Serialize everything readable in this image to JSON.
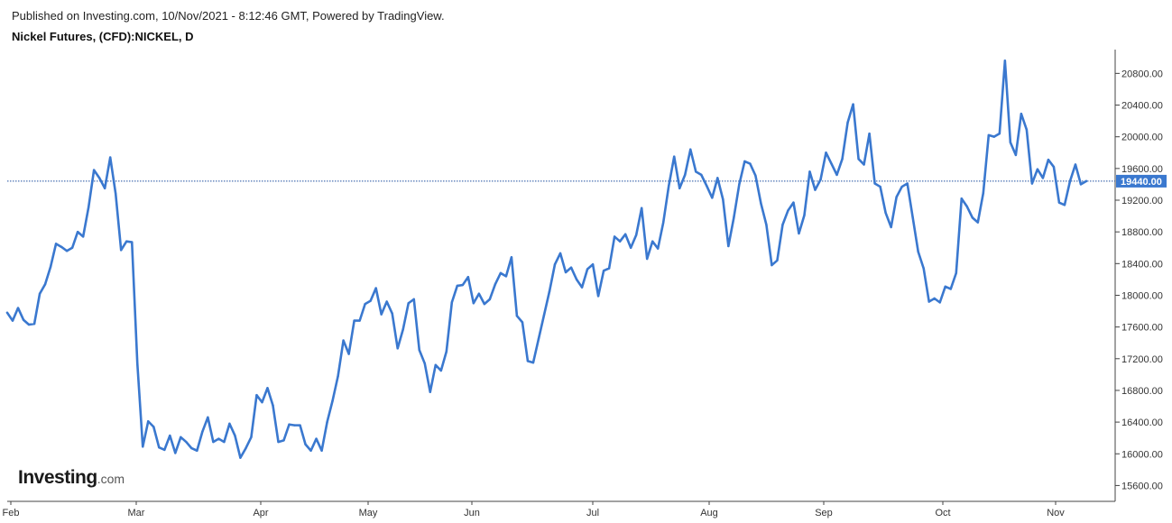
{
  "header": {
    "published": "Published on Investing.com, 10/Nov/2021 - 8:12:46 GMT, Powered by TradingView.",
    "symbol": "Nickel Futures, (CFD):NICKEL, D"
  },
  "logo": {
    "main": "Investing",
    "suffix": ".com"
  },
  "colors": {
    "line": "#3a78cf",
    "badge": "#3a78cf",
    "axis": "#444444",
    "guide": "#1f4fa0"
  },
  "chart_data": {
    "type": "line",
    "x_tick_labels": [
      "Feb",
      "Mar",
      "Apr",
      "May",
      "Jun",
      "Jul",
      "Aug",
      "Sep",
      "Oct",
      "Nov"
    ],
    "y_tick_labels": [
      "15600.00",
      "16000.00",
      "16400.00",
      "16800.00",
      "17200.00",
      "17600.00",
      "18000.00",
      "18400.00",
      "18800.00",
      "19200.00",
      "19600.00",
      "20000.00",
      "20400.00",
      "20800.00"
    ],
    "ylim": [
      15400,
      21100
    ],
    "last_price_label": "19440.00",
    "last_price": 19440,
    "series": [
      {
        "values": [
          17780,
          17680,
          17840,
          17690,
          17630,
          17640,
          18020,
          18140,
          18360,
          18650,
          18610,
          18560,
          18600,
          18800,
          18740,
          19110,
          19580,
          19480,
          19350,
          19740,
          19280,
          18570,
          18680,
          18670,
          17140,
          16090,
          16410,
          16340,
          16080,
          16050,
          16230,
          16010,
          16210,
          16150,
          16070,
          16040,
          16280,
          16460,
          16150,
          16190,
          16150,
          16380,
          16230,
          15950,
          16070,
          16210,
          16740,
          16650,
          16830,
          16610,
          16150,
          16170,
          16370,
          16360,
          16360,
          16120,
          16040,
          16190,
          16040,
          16400,
          16670,
          16980,
          17430,
          17260,
          17680,
          17680,
          17890,
          17930,
          18090,
          17760,
          17920,
          17770,
          17330,
          17570,
          17900,
          17950,
          17310,
          17140,
          16780,
          17120,
          17050,
          17290,
          17910,
          18120,
          18130,
          18230,
          17900,
          18020,
          17890,
          17950,
          18140,
          18280,
          18240,
          18480,
          17740,
          17660,
          17170,
          17150,
          17450,
          17750,
          18050,
          18390,
          18530,
          18290,
          18350,
          18200,
          18100,
          18330,
          18390,
          17990,
          18310,
          18340,
          18740,
          18680,
          18770,
          18600,
          18760,
          19100,
          18460,
          18680,
          18590,
          18920,
          19380,
          19750,
          19350,
          19520,
          19840,
          19560,
          19520,
          19380,
          19230,
          19480,
          19210,
          18620,
          18980,
          19400,
          19690,
          19660,
          19510,
          19160,
          18890,
          18380,
          18440,
          18890,
          19070,
          19170,
          18780,
          19010,
          19560,
          19330,
          19460,
          19800,
          19660,
          19520,
          19720,
          20180,
          20410,
          19720,
          19650,
          20040,
          19410,
          19370,
          19040,
          18860,
          19240,
          19370,
          19410,
          18980,
          18550,
          18340,
          17920,
          17960,
          17910,
          18110,
          18080,
          18280,
          19220,
          19120,
          18980,
          18920,
          19290,
          20020,
          20000,
          20040,
          20960,
          19930,
          19770,
          20290,
          20090,
          19410,
          19590,
          19480,
          19710,
          19620,
          19170,
          19140,
          19440,
          19650,
          19400,
          19440
        ]
      }
    ]
  }
}
